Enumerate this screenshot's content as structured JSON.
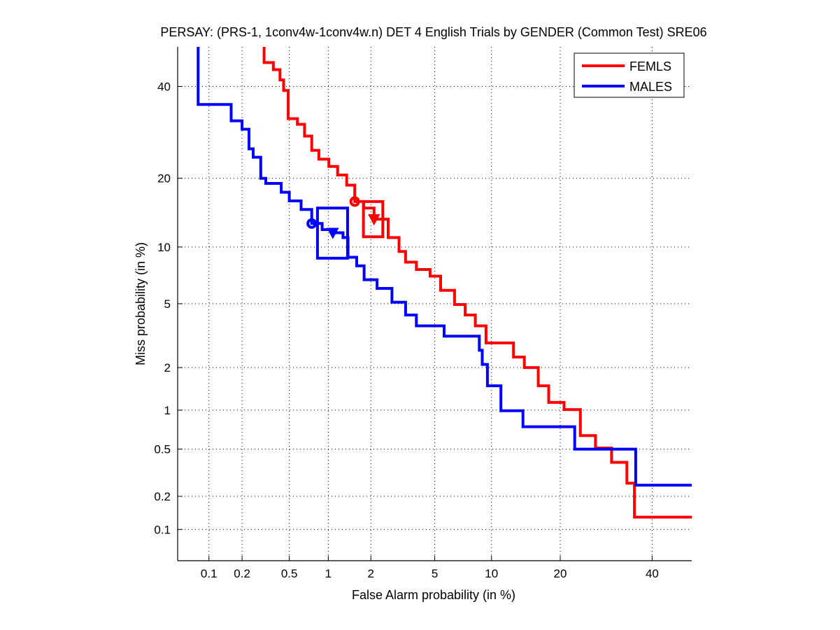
{
  "chart_data": {
    "type": "line",
    "title": "PERSAY: (PRS-1, 1conv4w-1conv4w.n) DET 4 English Trials by GENDER (Common Test) SRE06",
    "xlabel": "False Alarm probability (in %)",
    "ylabel": "Miss probability (in %)",
    "xscale": "probit",
    "yscale": "probit",
    "xlim": [
      0.05,
      50
    ],
    "ylim": [
      0.05,
      50
    ],
    "xticks": [
      0.1,
      0.2,
      0.5,
      1,
      2,
      5,
      10,
      20,
      40
    ],
    "xtick_labels": [
      "0.1",
      "0.2",
      "0.5",
      "1",
      "2",
      "5",
      "10",
      "20",
      "40"
    ],
    "yticks": [
      0.1,
      0.2,
      0.5,
      1,
      2,
      5,
      10,
      20,
      40
    ],
    "ytick_labels": [
      "0.1",
      "0.2",
      "0.5",
      "1",
      "2",
      "5",
      "10",
      "20",
      "40"
    ],
    "grid": true,
    "legend_position": "top-right",
    "series": [
      {
        "name": "FEMLS",
        "color": "#ff0000",
        "step": true,
        "points": [
          [
            0.31,
            50
          ],
          [
            0.31,
            46.0
          ],
          [
            0.37,
            44.2
          ],
          [
            0.42,
            41.6
          ],
          [
            0.45,
            39.0
          ],
          [
            0.49,
            32.3
          ],
          [
            0.58,
            31.0
          ],
          [
            0.66,
            28.4
          ],
          [
            0.75,
            25.4
          ],
          [
            0.85,
            23.6
          ],
          [
            1.01,
            22.2
          ],
          [
            1.17,
            20.6
          ],
          [
            1.36,
            18.8
          ],
          [
            1.55,
            16.1
          ],
          [
            1.79,
            15.1
          ],
          [
            2.1,
            13.5
          ],
          [
            2.6,
            11.1
          ],
          [
            3.05,
            9.5
          ],
          [
            3.35,
            8.4
          ],
          [
            3.9,
            7.7
          ],
          [
            4.7,
            7.1
          ],
          [
            5.4,
            5.95
          ],
          [
            6.45,
            4.95
          ],
          [
            7.35,
            4.3
          ],
          [
            8.3,
            3.7
          ],
          [
            9.4,
            2.9
          ],
          [
            12.7,
            2.35
          ],
          [
            14.2,
            2.0
          ],
          [
            16.3,
            1.5
          ],
          [
            18.0,
            1.14
          ],
          [
            20.7,
            1.01
          ],
          [
            23.8,
            0.64
          ],
          [
            26.9,
            0.51
          ],
          [
            30.4,
            0.39
          ],
          [
            33.9,
            0.26
          ],
          [
            35.7,
            0.13
          ],
          [
            50,
            0.13
          ]
        ],
        "actual_dcf_point": [
          1.55,
          16.1
        ],
        "min_dcf_point": [
          2.1,
          13.5
        ],
        "confidence_box": {
          "fa": [
            1.78,
            2.4
          ],
          "miss": [
            11.2,
            16.1
          ]
        }
      },
      {
        "name": "MALES",
        "color": "#0000ff",
        "step": true,
        "points": [
          [
            0.079,
            50
          ],
          [
            0.079,
            35.6
          ],
          [
            0.16,
            34.6
          ],
          [
            0.16,
            31.8
          ],
          [
            0.2,
            29.9
          ],
          [
            0.23,
            25.7
          ],
          [
            0.25,
            24.0
          ],
          [
            0.29,
            20.0
          ],
          [
            0.32,
            19.1
          ],
          [
            0.43,
            17.6
          ],
          [
            0.5,
            16.2
          ],
          [
            0.62,
            14.9
          ],
          [
            0.75,
            12.9
          ],
          [
            0.9,
            12.1
          ],
          [
            1.08,
            11.7
          ],
          [
            1.28,
            11.1
          ],
          [
            1.39,
            8.9
          ],
          [
            1.6,
            8.05
          ],
          [
            1.8,
            6.8
          ],
          [
            2.2,
            6.1
          ],
          [
            2.75,
            5.1
          ],
          [
            3.35,
            4.3
          ],
          [
            3.9,
            3.7
          ],
          [
            5.65,
            3.2
          ],
          [
            7.65,
            3.2
          ],
          [
            8.7,
            2.6
          ],
          [
            9.0,
            2.1
          ],
          [
            9.55,
            1.5
          ],
          [
            11.1,
            1.5
          ],
          [
            11.1,
            0.99
          ],
          [
            14.0,
            0.99
          ],
          [
            14.0,
            0.75
          ],
          [
            22.7,
            0.75
          ],
          [
            22.7,
            0.5
          ],
          [
            36.0,
            0.5
          ],
          [
            36.0,
            0.25
          ],
          [
            50,
            0.25
          ]
        ],
        "actual_dcf_point": [
          0.75,
          12.9
        ],
        "min_dcf_point": [
          1.08,
          11.7
        ],
        "confidence_box": {
          "fa": [
            0.83,
            1.38
          ],
          "miss": [
            8.8,
            15.1
          ]
        }
      }
    ]
  }
}
